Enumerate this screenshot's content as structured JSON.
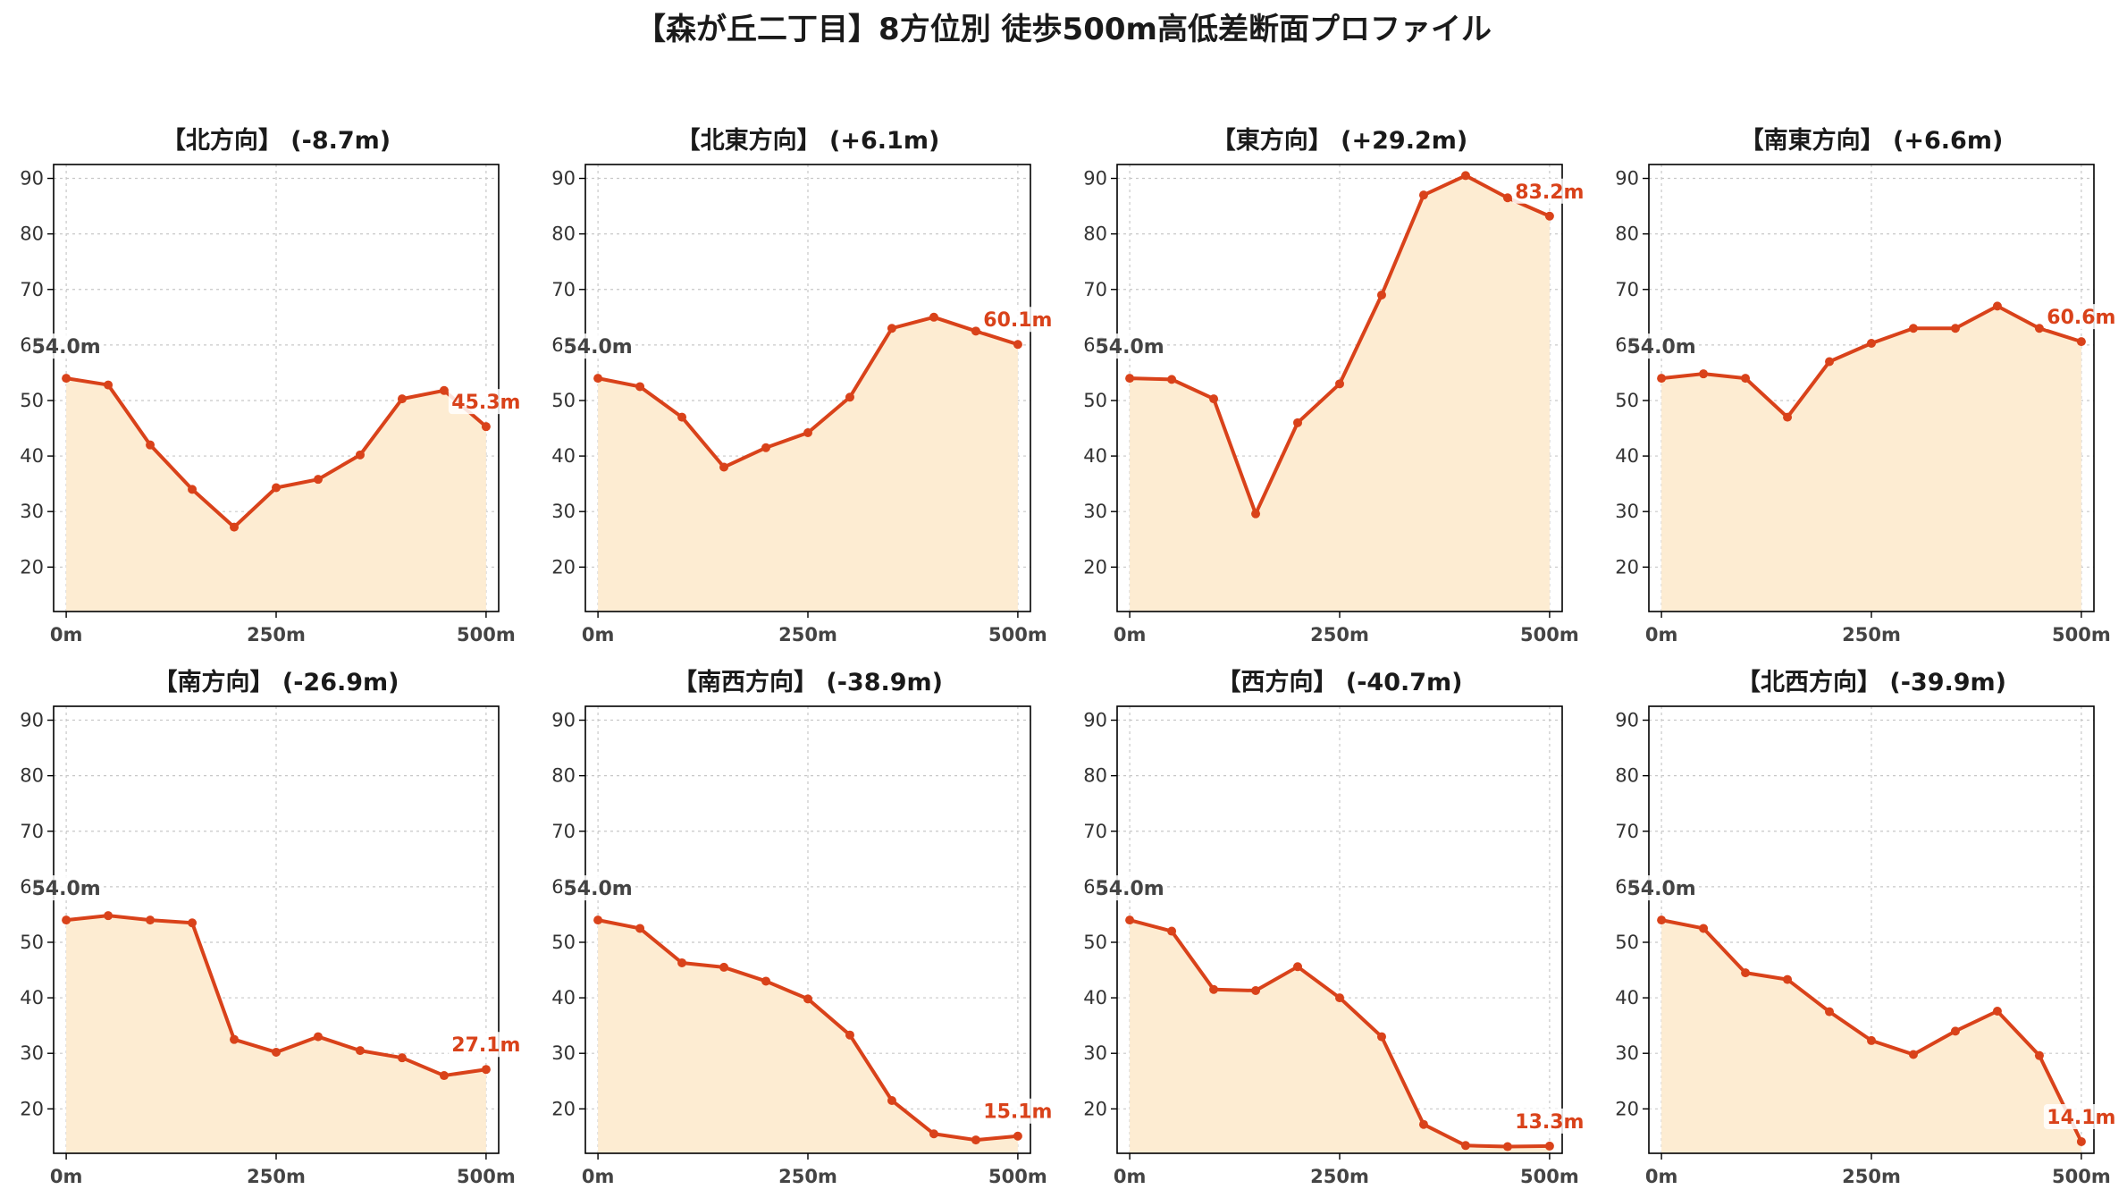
{
  "title": "【森が丘二丁目】8方位別 徒歩500m高低差断面プロファイル",
  "colors": {
    "line": "#d9421a",
    "fill": "#fdecd2",
    "end_label": "#d9421a",
    "start_label": "#444444"
  },
  "chart_data": [
    {
      "type": "area",
      "title": "【北方向】 (-8.7m)",
      "x": [
        0,
        50,
        100,
        150,
        200,
        250,
        300,
        350,
        400,
        450,
        500
      ],
      "series": [
        {
          "values": [
            54.0,
            52.8,
            42.0,
            34.0,
            27.2,
            34.3,
            35.8,
            40.2,
            50.3,
            51.8,
            45.3
          ]
        }
      ],
      "xtick_labels": [
        "0m",
        "250m",
        "500m"
      ],
      "xtick_values": [
        0,
        250,
        500
      ],
      "ytick_values": [
        20,
        30,
        40,
        50,
        60,
        70,
        80,
        90
      ],
      "ylim": [
        12,
        92.5
      ],
      "xlim": [
        -15,
        515
      ],
      "start_label": "54.0m",
      "end_label": "45.3m",
      "grid": true
    },
    {
      "type": "area",
      "title": "【北東方向】 (+6.1m)",
      "x": [
        0,
        50,
        100,
        150,
        200,
        250,
        300,
        350,
        400,
        450,
        500
      ],
      "series": [
        {
          "values": [
            54.0,
            52.5,
            47.0,
            38.0,
            41.5,
            44.2,
            50.6,
            63.0,
            65.0,
            62.5,
            60.1
          ]
        }
      ],
      "xtick_labels": [
        "0m",
        "250m",
        "500m"
      ],
      "xtick_values": [
        0,
        250,
        500
      ],
      "ytick_values": [
        20,
        30,
        40,
        50,
        60,
        70,
        80,
        90
      ],
      "ylim": [
        12,
        92.5
      ],
      "xlim": [
        -15,
        515
      ],
      "start_label": "54.0m",
      "end_label": "60.1m",
      "grid": true
    },
    {
      "type": "area",
      "title": "【東方向】 (+29.2m)",
      "x": [
        0,
        50,
        100,
        150,
        200,
        250,
        300,
        350,
        400,
        450,
        500
      ],
      "series": [
        {
          "values": [
            54.0,
            53.8,
            50.3,
            29.6,
            46.0,
            53.0,
            69.0,
            87.0,
            90.5,
            86.5,
            83.2
          ]
        }
      ],
      "xtick_labels": [
        "0m",
        "250m",
        "500m"
      ],
      "xtick_values": [
        0,
        250,
        500
      ],
      "ytick_values": [
        20,
        30,
        40,
        50,
        60,
        70,
        80,
        90
      ],
      "ylim": [
        12,
        92.5
      ],
      "xlim": [
        -15,
        515
      ],
      "start_label": "54.0m",
      "end_label": "83.2m",
      "grid": true
    },
    {
      "type": "area",
      "title": "【南東方向】 (+6.6m)",
      "x": [
        0,
        50,
        100,
        150,
        200,
        250,
        300,
        350,
        400,
        450,
        500
      ],
      "series": [
        {
          "values": [
            54.0,
            54.8,
            54.0,
            47.0,
            57.0,
            60.3,
            63.0,
            63.0,
            67.0,
            63.0,
            60.6
          ]
        }
      ],
      "xtick_labels": [
        "0m",
        "250m",
        "500m"
      ],
      "xtick_values": [
        0,
        250,
        500
      ],
      "ytick_values": [
        20,
        30,
        40,
        50,
        60,
        70,
        80,
        90
      ],
      "ylim": [
        12,
        92.5
      ],
      "xlim": [
        -15,
        515
      ],
      "start_label": "54.0m",
      "end_label": "60.6m",
      "grid": true
    },
    {
      "type": "area",
      "title": "【南方向】 (-26.9m)",
      "x": [
        0,
        50,
        100,
        150,
        200,
        250,
        300,
        350,
        400,
        450,
        500
      ],
      "series": [
        {
          "values": [
            54.0,
            54.8,
            54.0,
            53.5,
            32.5,
            30.2,
            33.0,
            30.5,
            29.2,
            26.0,
            27.1
          ]
        }
      ],
      "xtick_labels": [
        "0m",
        "250m",
        "500m"
      ],
      "xtick_values": [
        0,
        250,
        500
      ],
      "ytick_values": [
        20,
        30,
        40,
        50,
        60,
        70,
        80,
        90
      ],
      "ylim": [
        12,
        92.5
      ],
      "xlim": [
        -15,
        515
      ],
      "start_label": "54.0m",
      "end_label": "27.1m",
      "grid": true
    },
    {
      "type": "area",
      "title": "【南西方向】 (-38.9m)",
      "x": [
        0,
        50,
        100,
        150,
        200,
        250,
        300,
        350,
        400,
        450,
        500
      ],
      "series": [
        {
          "values": [
            54.0,
            52.5,
            46.3,
            45.5,
            43.0,
            39.8,
            33.3,
            21.5,
            15.5,
            14.4,
            15.1
          ]
        }
      ],
      "xtick_labels": [
        "0m",
        "250m",
        "500m"
      ],
      "xtick_values": [
        0,
        250,
        500
      ],
      "ytick_values": [
        20,
        30,
        40,
        50,
        60,
        70,
        80,
        90
      ],
      "ylim": [
        12,
        92.5
      ],
      "xlim": [
        -15,
        515
      ],
      "start_label": "54.0m",
      "end_label": "15.1m",
      "grid": true
    },
    {
      "type": "area",
      "title": "【西方向】 (-40.7m)",
      "x": [
        0,
        50,
        100,
        150,
        200,
        250,
        300,
        350,
        400,
        450,
        500
      ],
      "series": [
        {
          "values": [
            54.0,
            52.0,
            41.5,
            41.3,
            45.6,
            40.0,
            33.0,
            17.2,
            13.4,
            13.2,
            13.3
          ]
        }
      ],
      "xtick_labels": [
        "0m",
        "250m",
        "500m"
      ],
      "xtick_values": [
        0,
        250,
        500
      ],
      "ytick_values": [
        20,
        30,
        40,
        50,
        60,
        70,
        80,
        90
      ],
      "ylim": [
        12,
        92.5
      ],
      "xlim": [
        -15,
        515
      ],
      "start_label": "54.0m",
      "end_label": "13.3m",
      "grid": true
    },
    {
      "type": "area",
      "title": "【北西方向】 (-39.9m)",
      "x": [
        0,
        50,
        100,
        150,
        200,
        250,
        300,
        350,
        400,
        450,
        500
      ],
      "series": [
        {
          "values": [
            54.0,
            52.5,
            44.5,
            43.3,
            37.5,
            32.3,
            29.8,
            34.0,
            37.6,
            29.6,
            14.1
          ]
        }
      ],
      "xtick_labels": [
        "0m",
        "250m",
        "500m"
      ],
      "xtick_values": [
        0,
        250,
        500
      ],
      "ytick_values": [
        20,
        30,
        40,
        50,
        60,
        70,
        80,
        90
      ],
      "ylim": [
        12,
        92.5
      ],
      "xlim": [
        -15,
        515
      ],
      "start_label": "54.0m",
      "end_label": "14.1m",
      "grid": true
    }
  ]
}
